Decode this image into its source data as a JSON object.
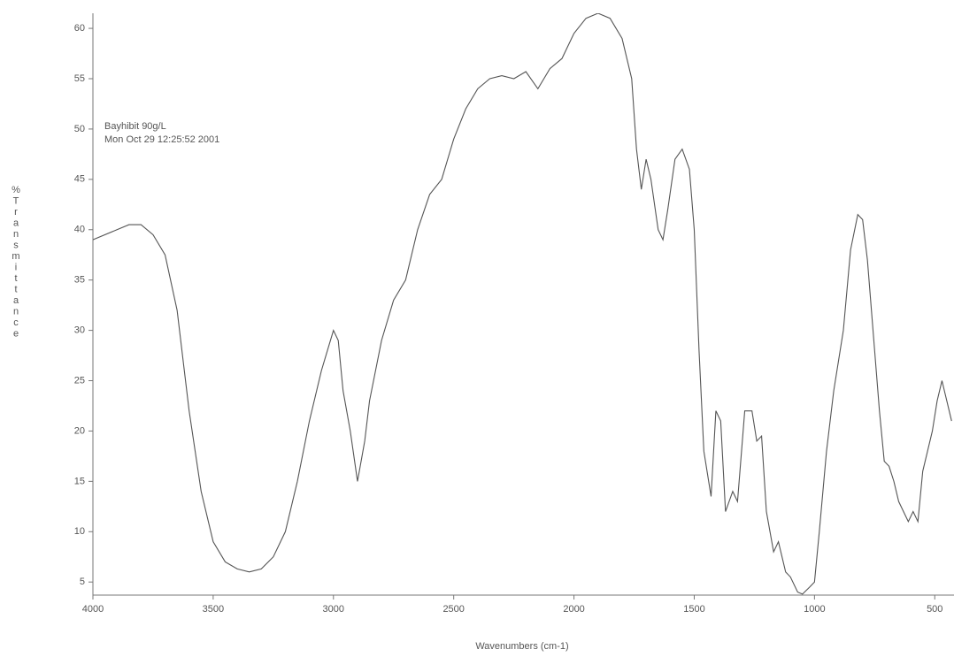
{
  "chart_data": {
    "type": "line",
    "annotations": [
      "Bayhibit 90g/L",
      "Mon Oct 29 12:25:52 2001"
    ],
    "x_label": "Wavenumbers (cm-1)",
    "y_label": "%Transmittance",
    "xlim": [
      4000,
      420
    ],
    "ylim": [
      3.7,
      61.5
    ],
    "xticks": [
      4000,
      3500,
      3000,
      2500,
      2000,
      1500,
      1000,
      500
    ],
    "yticks": [
      5,
      10,
      15,
      20,
      25,
      30,
      35,
      40,
      45,
      50,
      55,
      60
    ],
    "color": "#555555",
    "x": [
      4000,
      3900,
      3850,
      3800,
      3750,
      3700,
      3650,
      3620,
      3600,
      3550,
      3500,
      3450,
      3400,
      3350,
      3300,
      3250,
      3200,
      3150,
      3100,
      3050,
      3000,
      2980,
      2960,
      2930,
      2900,
      2870,
      2850,
      2800,
      2750,
      2700,
      2650,
      2600,
      2550,
      2500,
      2450,
      2400,
      2350,
      2300,
      2250,
      2200,
      2150,
      2100,
      2050,
      2000,
      1950,
      1900,
      1850,
      1800,
      1760,
      1740,
      1720,
      1700,
      1680,
      1650,
      1630,
      1610,
      1580,
      1550,
      1520,
      1500,
      1480,
      1460,
      1440,
      1430,
      1410,
      1390,
      1370,
      1340,
      1320,
      1290,
      1260,
      1240,
      1220,
      1200,
      1170,
      1150,
      1120,
      1100,
      1070,
      1050,
      1020,
      1000,
      980,
      950,
      920,
      880,
      850,
      820,
      800,
      780,
      750,
      730,
      710,
      690,
      670,
      650,
      630,
      610,
      590,
      570,
      550,
      530,
      510,
      490,
      470,
      450,
      430
    ],
    "values": [
      39,
      40,
      40.5,
      40.5,
      39.5,
      37.5,
      32,
      26,
      22,
      14,
      9,
      7,
      6.3,
      6,
      6.3,
      7.5,
      10,
      15,
      21,
      26,
      30,
      29,
      24,
      20,
      15,
      19,
      23,
      29,
      33,
      35,
      40,
      43.5,
      45,
      49,
      52,
      54,
      55,
      55.3,
      55,
      55.7,
      54,
      56,
      57,
      59.5,
      61,
      61.5,
      61,
      59,
      55,
      48,
      44,
      47,
      45,
      40,
      39,
      42,
      47,
      48,
      46,
      40,
      28,
      18,
      15,
      13.5,
      22,
      21,
      12,
      14,
      13,
      22,
      22,
      19,
      19.5,
      12,
      8,
      9,
      6,
      5.5,
      4,
      3.8,
      4.5,
      5,
      10,
      18,
      24,
      30,
      38,
      41.5,
      41,
      37,
      28,
      22,
      17,
      16.5,
      15,
      13,
      12,
      11,
      12,
      11,
      16,
      18,
      20,
      23,
      25,
      23,
      21
    ]
  }
}
